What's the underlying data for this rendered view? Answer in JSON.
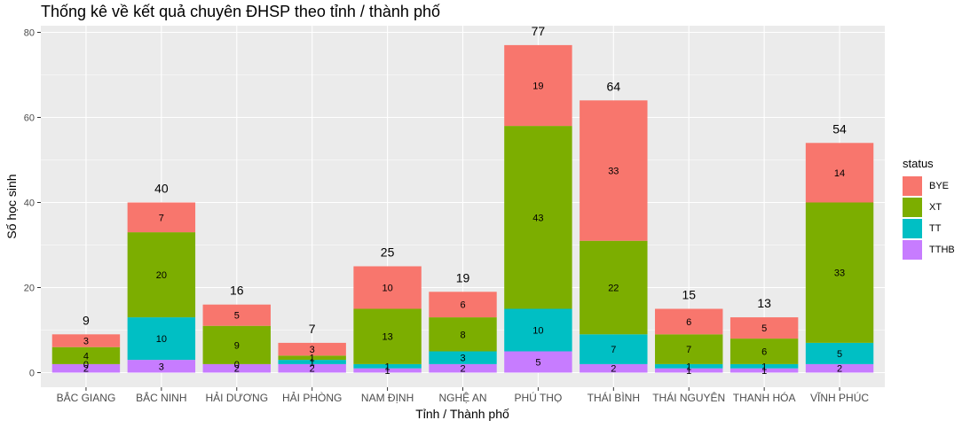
{
  "chart_data": {
    "type": "bar",
    "stacked": true,
    "title": "Thống kê về kết quả chuyên ĐHSP theo tỉnh / thành phố",
    "xlabel": "Tỉnh / Thành phố",
    "ylabel": "Số học sinh",
    "ylim": [
      0,
      80
    ],
    "yticks": [
      "0",
      "20",
      "40",
      "60",
      "80"
    ],
    "grid": true,
    "legend": {
      "title": "status",
      "position": "right"
    },
    "categories": [
      "BẮC GIANG",
      "BẮC NINH",
      "HẢI DƯƠNG",
      "HẢI PHÒNG",
      "NAM ĐỊNH",
      "NGHỆ AN",
      "PHÚ THỌ",
      "THÁI BÌNH",
      "THÁI NGUYÊN",
      "THANH HÓA",
      "VĨNH PHÚC"
    ],
    "totals": [
      "9",
      "40",
      "16",
      "7",
      "25",
      "19",
      "77",
      "64",
      "15",
      "13",
      "54"
    ],
    "series": [
      {
        "name": "TTHB",
        "color": "#C77CFF",
        "values": [
          2,
          3,
          2,
          2,
          1,
          2,
          5,
          2,
          1,
          1,
          2
        ],
        "labels": [
          "2",
          "3",
          "2",
          "2",
          "1",
          "2",
          "5",
          "2",
          "1",
          "1",
          "2"
        ]
      },
      {
        "name": "TT",
        "color": "#00BFC4",
        "values": [
          0,
          10,
          0,
          1,
          1,
          3,
          10,
          7,
          1,
          1,
          5
        ],
        "labels": [
          "0",
          "10",
          "0",
          "1",
          "1",
          "3",
          "10",
          "7",
          "1",
          "1",
          "5"
        ]
      },
      {
        "name": "XT",
        "color": "#7CAE00",
        "values": [
          4,
          20,
          9,
          1,
          13,
          8,
          43,
          22,
          7,
          6,
          33
        ],
        "labels": [
          "4",
          "20",
          "9",
          "1",
          "13",
          "8",
          "43",
          "22",
          "7",
          "6",
          "33"
        ]
      },
      {
        "name": "BYE",
        "color": "#F8766D",
        "values": [
          3,
          7,
          5,
          3,
          10,
          6,
          19,
          33,
          6,
          5,
          14
        ],
        "labels": [
          "3",
          "7",
          "5",
          "3",
          "10",
          "6",
          "19",
          "33",
          "6",
          "5",
          "14"
        ]
      }
    ],
    "legend_order": [
      "BYE",
      "XT",
      "TT",
      "TTHB"
    ]
  }
}
